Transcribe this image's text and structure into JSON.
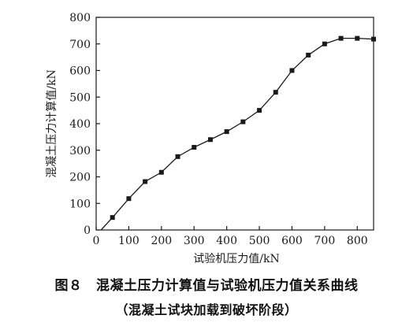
{
  "figure": {
    "caption_line_1": "图８　混凝土压力计算值与试验机压力值关系曲线",
    "caption_line_2": "（混凝土试块加载到破坏阶段）"
  },
  "chart_data": {
    "type": "line",
    "xlabel": "试验机压力值/kN",
    "ylabel": "混凝土压力计算值/kN",
    "xlim": [
      0,
      850
    ],
    "ylim": [
      0,
      800
    ],
    "x_ticks": [
      0,
      100,
      200,
      300,
      400,
      500,
      600,
      700,
      800
    ],
    "y_ticks": [
      0,
      100,
      200,
      300,
      400,
      500,
      600,
      700,
      800
    ],
    "grid": false,
    "line_color": "#1a1a1a",
    "marker": "square",
    "series": [
      {
        "x": [
          50,
          100,
          150,
          200,
          250,
          300,
          350,
          400,
          450,
          500,
          550,
          600,
          650,
          700,
          750,
          800,
          850
        ],
        "y": [
          47,
          118,
          182,
          217,
          276,
          311,
          340,
          370,
          407,
          450,
          518,
          600,
          658,
          700,
          721,
          721,
          718
        ]
      }
    ],
    "line_start": [
      15,
      0
    ]
  }
}
